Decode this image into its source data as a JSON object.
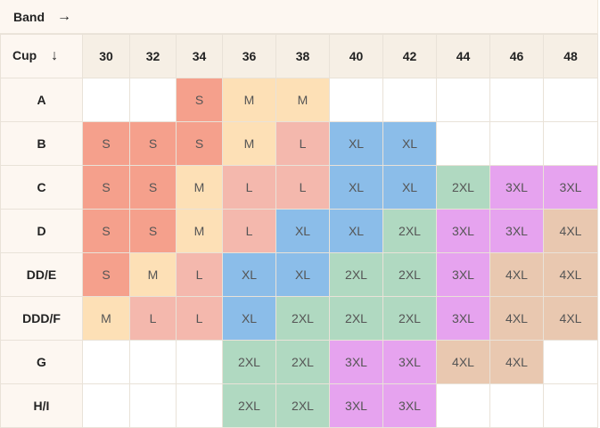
{
  "band_label": "Band",
  "band_arrow": "→",
  "cup_label": "Cup",
  "cup_arrow": "↓",
  "bands": [
    "30",
    "32",
    "34",
    "36",
    "38",
    "40",
    "42",
    "44",
    "46",
    "48"
  ],
  "rows": [
    {
      "cup": "A",
      "sizes": [
        "",
        "",
        "S",
        "M",
        "M",
        "",
        "",
        "",
        "",
        ""
      ]
    },
    {
      "cup": "B",
      "sizes": [
        "S",
        "S",
        "S",
        "M",
        "L",
        "XL",
        "XL",
        "",
        "",
        ""
      ]
    },
    {
      "cup": "C",
      "sizes": [
        "S",
        "S",
        "M",
        "L",
        "L",
        "XL",
        "XL",
        "2XL",
        "3XL",
        "3XL"
      ]
    },
    {
      "cup": "D",
      "sizes": [
        "S",
        "S",
        "M",
        "L",
        "XL",
        "XL",
        "2XL",
        "3XL",
        "3XL",
        "4XL"
      ]
    },
    {
      "cup": "DD/E",
      "sizes": [
        "S",
        "M",
        "L",
        "XL",
        "XL",
        "2XL",
        "2XL",
        "3XL",
        "4XL",
        "4XL"
      ]
    },
    {
      "cup": "DDD/F",
      "sizes": [
        "M",
        "L",
        "L",
        "XL",
        "2XL",
        "2XL",
        "2XL",
        "3XL",
        "4XL",
        "4XL"
      ]
    },
    {
      "cup": "G",
      "sizes": [
        "",
        "",
        "",
        "2XL",
        "2XL",
        "3XL",
        "3XL",
        "4XL",
        "4XL",
        ""
      ]
    },
    {
      "cup": "H/I",
      "sizes": [
        "",
        "",
        "",
        "2XL",
        "2XL",
        "3XL",
        "3XL",
        "",
        "",
        ""
      ]
    }
  ],
  "size_colors": {
    "S": "#f5a08c",
    "M": "#fde0b6",
    "L": "#f4b8ad",
    "XL": "#8bbde9",
    "2XL": "#b0d9c1",
    "3XL": "#e6a3ef",
    "4XL": "#e9c8b0"
  }
}
